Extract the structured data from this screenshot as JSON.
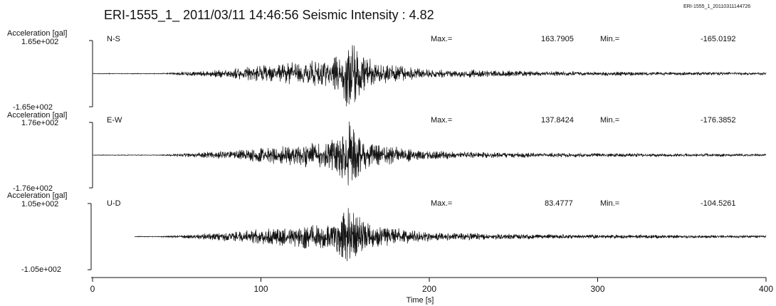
{
  "header": {
    "title": "ERI-1555_1_  2011/03/11 14:46:56  Seismic Intensity : 4.82",
    "file_id": "ERI-1555_1_20110311144726"
  },
  "chart_data": {
    "type": "line",
    "xlabel": "Time [s]",
    "xlim": [
      0,
      400
    ],
    "xticks": [
      0,
      100,
      200,
      300,
      400
    ],
    "max_label": "Max.=",
    "min_label": "Min.=",
    "panels": [
      {
        "component": "N-S",
        "ylabel": "Acceleration [gal]",
        "ymax_label": "1.65e+002",
        "ymin_label": "-1.65e+002",
        "ylim": [
          -165,
          165
        ],
        "max": "163.7905",
        "min": "-165.0192"
      },
      {
        "component": "E-W",
        "ylabel": "Acceleration [gal]",
        "ymax_label": "1.76e+002",
        "ymin_label": "-1.76e+002",
        "ylim": [
          -176,
          176
        ],
        "max": "137.8424",
        "min": "-176.3852"
      },
      {
        "component": "U-D",
        "ylabel": "Acceleration [gal]",
        "ymax_label": "1.05e+002",
        "ymin_label": "-1.05e+002",
        "ylim": [
          -105,
          105
        ],
        "max": "83.4777",
        "min": "-104.5261"
      }
    ]
  }
}
